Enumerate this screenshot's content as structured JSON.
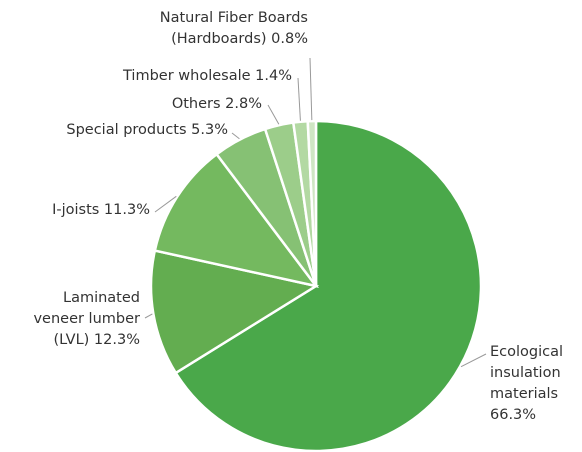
{
  "chart_data": {
    "type": "pie",
    "categories": [
      "Ecological insulation materials",
      "Laminated veneer lumber (LVL)",
      "I-joists",
      "Special products",
      "Others",
      "Timber wholesale",
      "Natural Fiber Boards (Hardboards)"
    ],
    "values": [
      66.3,
      12.3,
      11.3,
      5.3,
      2.8,
      1.4,
      0.8
    ],
    "value_labels": [
      "66.3%",
      "12.3%",
      "11.3%",
      "5.3%",
      "2.8%",
      "1.4%",
      "0.8%"
    ],
    "colors": [
      "#4aa84a",
      "#63ad50",
      "#74b95f",
      "#86c174",
      "#9ccd8a",
      "#b3d9a3",
      "#cfe6c4"
    ]
  }
}
